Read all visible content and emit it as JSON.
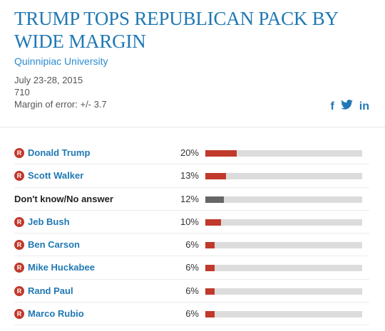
{
  "header": {
    "title": "TRUMP TOPS REPUBLICAN PACK BY WIDE MARGIN",
    "source": "Quinnipiac University"
  },
  "meta": {
    "dates": "July 23-28, 2015",
    "sample": "710",
    "margin": "Margin of error: +/- 3.7"
  },
  "social": {
    "facebook": "f",
    "twitter": "t",
    "linkedin": "in"
  },
  "colors": {
    "republican": "#c0392b",
    "undecided": "#666666",
    "track": "#dcdcdc",
    "title": "#1f78b4"
  },
  "party_badge": "R",
  "chart_data": {
    "type": "bar",
    "orientation": "horizontal",
    "unit": "%",
    "xlim": [
      0,
      100
    ],
    "categories": [
      "Donald Trump",
      "Scott Walker",
      "Don't know/No answer",
      "Jeb Bush",
      "Ben Carson",
      "Mike Huckabee",
      "Rand Paul",
      "Marco Rubio"
    ],
    "values": [
      20,
      13,
      12,
      10,
      6,
      6,
      6,
      6
    ],
    "labels": [
      "20%",
      "13%",
      "12%",
      "10%",
      "6%",
      "6%",
      "6%",
      "6%"
    ],
    "party": [
      "R",
      "R",
      "",
      "R",
      "R",
      "R",
      "R",
      "R"
    ]
  }
}
